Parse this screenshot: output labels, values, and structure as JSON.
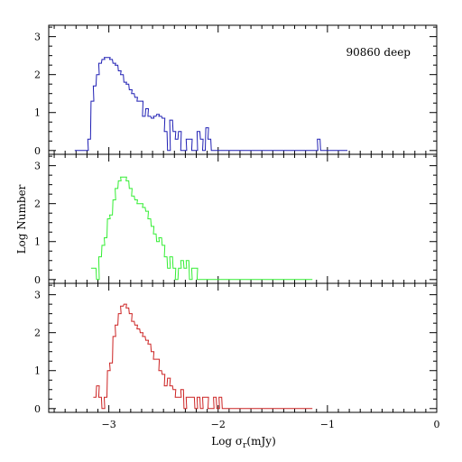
{
  "chart_data": {
    "type": "histogram",
    "xlabel_main": "Log σ",
    "xlabel_sub": "r",
    "xlabel_unit": "(mJy)",
    "ylabel": "Log Number",
    "xlim": [
      -3.55,
      0
    ],
    "x_tick_labels": [
      {
        "value": -3,
        "label": "−3"
      },
      {
        "value": -2,
        "label": "−2"
      },
      {
        "value": -1,
        "label": "−1"
      },
      {
        "value": 0,
        "label": "0"
      }
    ],
    "panels": [
      {
        "color": "#1f1fb4",
        "annotation": "90860 deep",
        "ylim": [
          -0.1,
          3.3
        ],
        "y_ticks": [
          0,
          1,
          2,
          3
        ],
        "x": [
          -3.3,
          -3.25,
          -3.2,
          -3.18,
          -3.15,
          -3.13,
          -3.1,
          -3.08,
          -3.05,
          -3.03,
          -3.0,
          -2.98,
          -2.95,
          -2.93,
          -2.9,
          -2.88,
          -2.85,
          -2.83,
          -2.8,
          -2.78,
          -2.75,
          -2.73,
          -2.7,
          -2.68,
          -2.65,
          -2.63,
          -2.6,
          -2.58,
          -2.55,
          -2.53,
          -2.5,
          -2.48,
          -2.45,
          -2.43,
          -2.4,
          -2.38,
          -2.35,
          -2.33,
          -2.3,
          -2.28,
          -2.25,
          -2.23,
          -2.2,
          -2.18,
          -2.15,
          -2.13,
          -2.1,
          -2.08,
          -2.05,
          -2.03,
          -2.0,
          -1.98,
          -1.95,
          -1.93,
          -1.9,
          -1.88,
          -1.85,
          -1.83,
          -1.8,
          -1.6,
          -1.58,
          -1.55,
          -1.35,
          -1.33,
          -1.3,
          -1.2,
          -1.1,
          -1.08,
          -1.05,
          -0.85,
          -0.83
        ],
        "y": [
          0.0,
          0.0,
          0.0,
          0.3,
          1.3,
          1.7,
          2.0,
          2.3,
          2.4,
          2.45,
          2.45,
          2.4,
          2.3,
          2.25,
          2.1,
          2.0,
          1.8,
          1.75,
          1.6,
          1.5,
          1.4,
          1.3,
          1.3,
          0.9,
          1.1,
          0.9,
          0.85,
          0.9,
          0.95,
          0.9,
          0.85,
          0.5,
          0.0,
          0.8,
          0.5,
          0.3,
          0.5,
          0.0,
          0.0,
          0.3,
          0.3,
          0.0,
          0.0,
          0.5,
          0.3,
          0.0,
          0.6,
          0.3,
          0.0,
          0.0,
          0.0,
          0.0,
          0.0,
          0.0,
          0.0,
          0.0,
          0.0,
          0.0,
          0.0,
          0.0,
          0.0,
          0.0,
          0.0,
          0.0,
          0.0,
          0.0,
          0.0,
          0.3,
          0.0,
          0.0,
          0.0
        ]
      },
      {
        "color": "#33ee33",
        "annotation": "",
        "ylim": [
          -0.1,
          3.3
        ],
        "y_ticks": [
          0,
          1,
          2,
          3
        ],
        "x": [
          -3.15,
          -3.13,
          -3.1,
          -3.08,
          -3.05,
          -3.03,
          -3.0,
          -2.98,
          -2.95,
          -2.93,
          -2.9,
          -2.88,
          -2.85,
          -2.83,
          -2.8,
          -2.78,
          -2.75,
          -2.73,
          -2.7,
          -2.68,
          -2.65,
          -2.63,
          -2.6,
          -2.58,
          -2.55,
          -2.53,
          -2.5,
          -2.48,
          -2.45,
          -2.43,
          -2.4,
          -2.38,
          -2.35,
          -2.33,
          -2.3,
          -2.28,
          -2.25,
          -2.23,
          -2.2,
          -2.18,
          -2.15,
          -2.13,
          -2.1,
          -2.08,
          -2.05,
          -2.03,
          -2.0,
          -1.98,
          -1.95,
          -1.93,
          -1.9,
          -1.88,
          -1.85,
          -1.83,
          -1.8,
          -1.78,
          -1.75,
          -1.73,
          -1.7,
          -1.68,
          -1.65,
          -1.63,
          -1.6,
          -1.58,
          -1.55,
          -1.53,
          -1.5,
          -1.48,
          -1.45,
          -1.43,
          -1.4,
          -1.38,
          -1.35,
          -1.33,
          -1.3,
          -1.28,
          -1.25,
          -1.23,
          -1.2,
          -1.18,
          -1.15
        ],
        "y": [
          0.3,
          0.3,
          0.0,
          0.6,
          0.9,
          1.1,
          1.6,
          1.7,
          2.1,
          2.4,
          2.6,
          2.7,
          2.7,
          2.6,
          2.4,
          2.2,
          2.1,
          2.0,
          2.0,
          1.9,
          1.8,
          1.6,
          1.4,
          1.2,
          1.0,
          1.1,
          0.9,
          0.6,
          0.3,
          0.6,
          0.3,
          0.0,
          0.3,
          0.5,
          0.3,
          0.5,
          0.0,
          0.3,
          0.3,
          0.0,
          0.0,
          0.0,
          0.0,
          0.0,
          0.0,
          0.0,
          0.0,
          0.0,
          0.0,
          0.0,
          0.0,
          0.0,
          0.0,
          0.0,
          0.0,
          0.0,
          0.0,
          0.0,
          0.0,
          0.0,
          0.0,
          0.0,
          0.0,
          0.0,
          0.0,
          0.0,
          0.0,
          0.0,
          0.0,
          0.0,
          0.0,
          0.0,
          0.0,
          0.0,
          0.0,
          0.0,
          0.0,
          0.0,
          0.0,
          0.0,
          0.0
        ]
      },
      {
        "color": "#cc2222",
        "annotation": "",
        "ylim": [
          -0.1,
          3.3
        ],
        "y_ticks": [
          0,
          1,
          2,
          3
        ],
        "x": [
          -3.13,
          -3.1,
          -3.08,
          -3.05,
          -3.03,
          -3.0,
          -2.98,
          -2.95,
          -2.93,
          -2.9,
          -2.88,
          -2.85,
          -2.83,
          -2.8,
          -2.78,
          -2.75,
          -2.73,
          -2.7,
          -2.68,
          -2.65,
          -2.63,
          -2.6,
          -2.58,
          -2.55,
          -2.53,
          -2.5,
          -2.48,
          -2.45,
          -2.43,
          -2.4,
          -2.38,
          -2.35,
          -2.33,
          -2.3,
          -2.28,
          -2.25,
          -2.23,
          -2.2,
          -2.18,
          -2.15,
          -2.13,
          -2.1,
          -2.08,
          -2.05,
          -2.03,
          -2.0,
          -1.98,
          -1.95,
          -1.93,
          -1.9,
          -1.88,
          -1.85,
          -1.83,
          -1.8,
          -1.78,
          -1.75,
          -1.73,
          -1.7,
          -1.68,
          -1.65,
          -1.63,
          -1.6,
          -1.58,
          -1.55,
          -1.53,
          -1.5,
          -1.48,
          -1.45,
          -1.43,
          -1.4,
          -1.38,
          -1.35,
          -1.33,
          -1.3,
          -1.28,
          -1.25,
          -1.23,
          -1.2,
          -1.18,
          -1.15
        ],
        "y": [
          0.3,
          0.6,
          0.3,
          0.0,
          0.3,
          1.0,
          1.2,
          1.9,
          2.2,
          2.5,
          2.7,
          2.75,
          2.65,
          2.5,
          2.3,
          2.2,
          2.1,
          2.0,
          1.9,
          1.8,
          1.7,
          1.5,
          1.3,
          1.3,
          1.0,
          0.9,
          0.6,
          0.8,
          0.6,
          0.5,
          0.3,
          0.3,
          0.5,
          0.0,
          0.3,
          0.3,
          0.3,
          0.0,
          0.3,
          0.0,
          0.3,
          0.3,
          0.0,
          0.0,
          0.3,
          0.0,
          0.3,
          0.0,
          0.0,
          0.0,
          0.0,
          0.0,
          0.0,
          0.0,
          0.0,
          0.0,
          0.0,
          0.0,
          0.0,
          0.0,
          0.0,
          0.0,
          0.0,
          0.0,
          0.0,
          0.0,
          0.0,
          0.0,
          0.0,
          0.0,
          0.0,
          0.0,
          0.0,
          0.0,
          0.0,
          0.0,
          0.0,
          0.0,
          0.0,
          0.0
        ]
      }
    ]
  }
}
